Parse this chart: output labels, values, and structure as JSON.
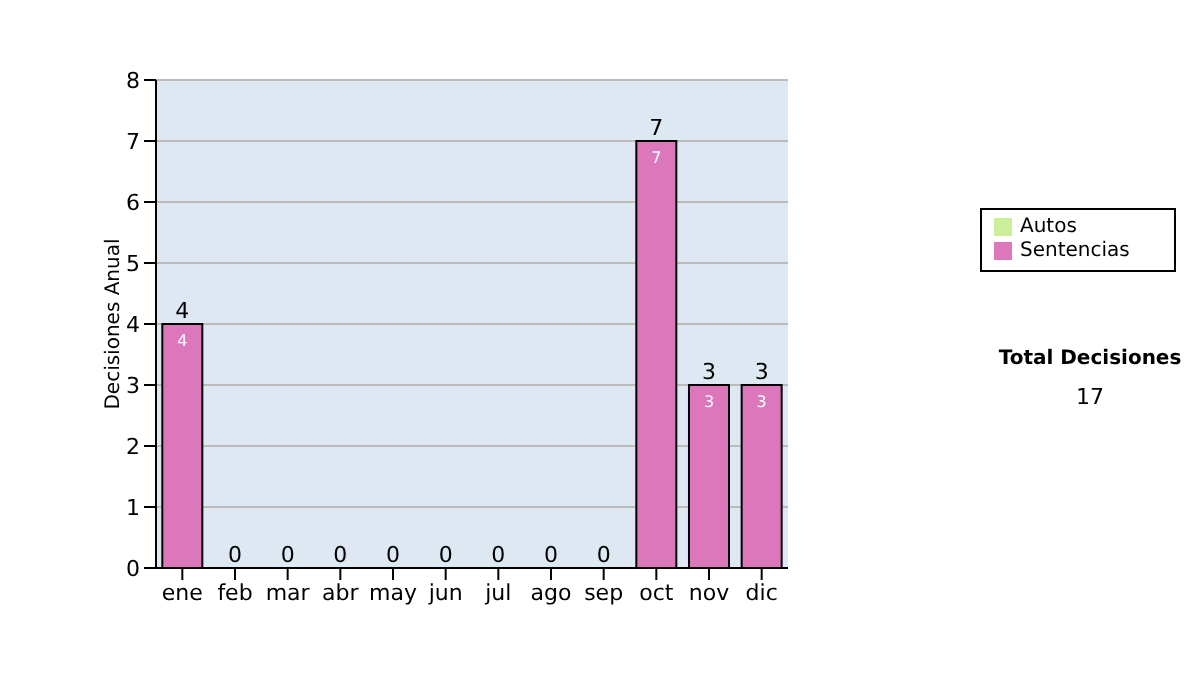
{
  "chart_data": {
    "type": "bar",
    "stacked": true,
    "ylabel": "Decisiones Anual",
    "categories": [
      "ene",
      "feb",
      "mar",
      "abr",
      "may",
      "jun",
      "jul",
      "ago",
      "sep",
      "oct",
      "nov",
      "dic"
    ],
    "series": [
      {
        "name": "Sentencias",
        "color": "#dd77bb",
        "values": [
          4,
          0,
          0,
          0,
          0,
          0,
          0,
          0,
          0,
          7,
          3,
          3
        ],
        "value_labels": [
          "4",
          null,
          null,
          null,
          null,
          null,
          null,
          null,
          null,
          "7",
          "3",
          "3"
        ]
      },
      {
        "name": "Autos",
        "color": "#ccee99",
        "values": [
          0,
          0,
          0,
          0,
          0,
          0,
          0,
          0,
          0,
          0,
          0,
          0
        ]
      }
    ],
    "totals": [
      "4",
      "0",
      "0",
      "0",
      "0",
      "0",
      "0",
      "0",
      "0",
      "7",
      "3",
      "3"
    ],
    "ylim": [
      0,
      8
    ],
    "yticks": [
      0,
      1,
      2,
      3,
      4,
      5,
      6,
      7,
      8
    ],
    "grid": "y",
    "legend": "right",
    "annotations": [
      "Total Decisiones",
      "17"
    ]
  }
}
